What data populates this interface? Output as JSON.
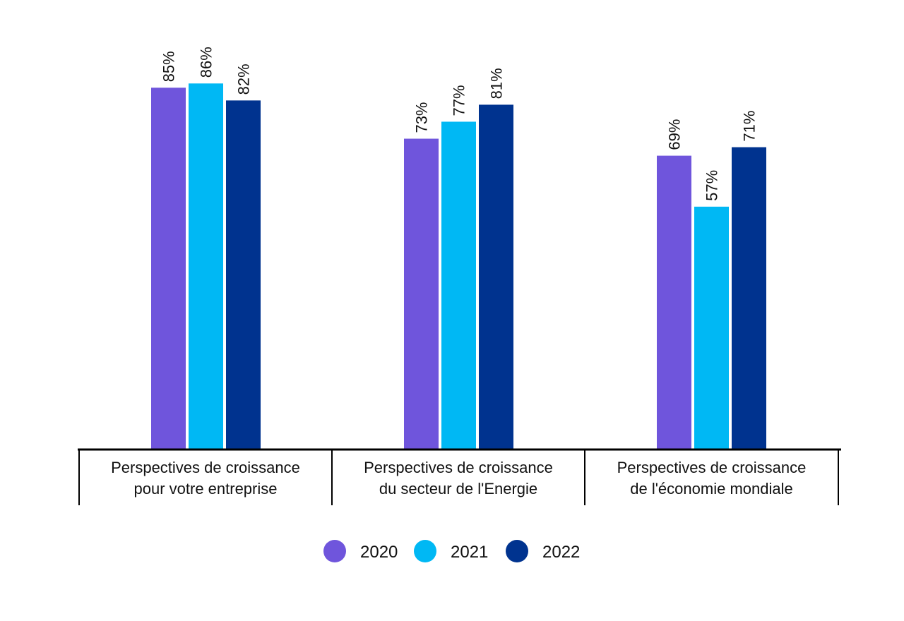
{
  "chart_data": {
    "type": "bar",
    "title": "",
    "xlabel": "",
    "ylabel": "",
    "ylim": [
      0,
      100
    ],
    "grid": false,
    "legend_position": "bottom-center",
    "value_suffix": "%",
    "categories": [
      [
        "Perspectives de croissance",
        "pour votre entreprise"
      ],
      [
        "Perspectives de croissance",
        "du secteur de l'Energie"
      ],
      [
        "Perspectives de croissance",
        "de l'économie mondiale"
      ]
    ],
    "series": [
      {
        "name": "2020",
        "color": "#6f55dc",
        "values": [
          85,
          73,
          69
        ]
      },
      {
        "name": "2021",
        "color": "#00b8f4",
        "values": [
          86,
          77,
          57
        ]
      },
      {
        "name": "2022",
        "color": "#00338f",
        "values": [
          82,
          81,
          71
        ]
      }
    ]
  }
}
